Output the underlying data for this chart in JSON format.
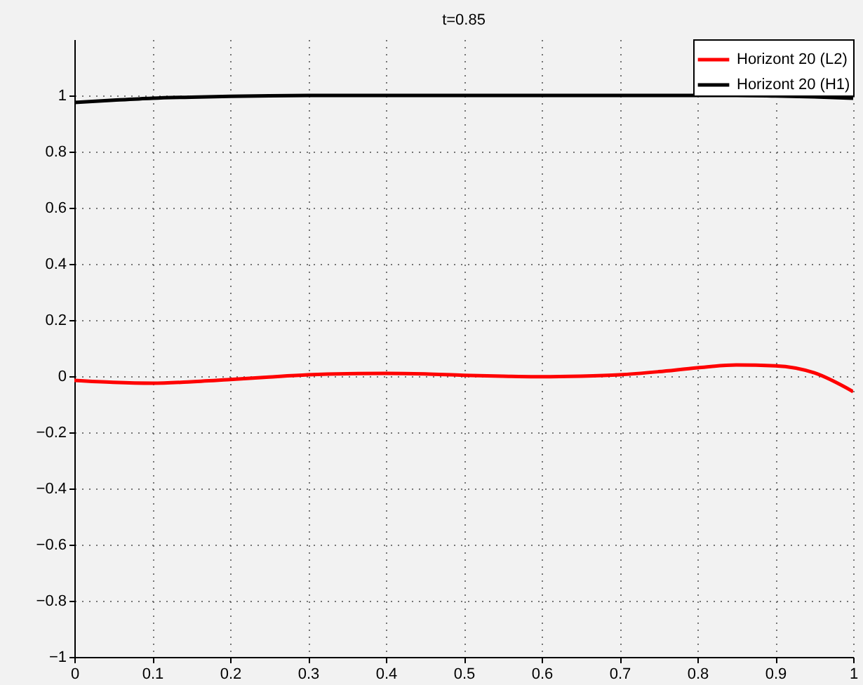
{
  "chart_data": {
    "type": "line",
    "title": "t=0.85",
    "x": [
      0,
      0.05,
      0.1,
      0.15,
      0.2,
      0.25,
      0.3,
      0.35,
      0.4,
      0.45,
      0.5,
      0.55,
      0.6,
      0.65,
      0.7,
      0.75,
      0.8,
      0.85,
      0.9,
      0.95,
      1
    ],
    "series": [
      {
        "name": "Horizont 20 (L2)",
        "color": "#ff0000",
        "values": [
          -0.015,
          -0.022,
          -0.025,
          -0.02,
          -0.012,
          -0.003,
          0.005,
          0.009,
          0.01,
          0.008,
          0.003,
          0,
          -0.002,
          0,
          0.005,
          0.016,
          0.03,
          0.04,
          0.037,
          0.012,
          -0.055
        ]
      },
      {
        "name": "Horizont 20 (H1)",
        "color": "#000000",
        "values": [
          0.975,
          0.983,
          0.99,
          0.994,
          0.997,
          0.999,
          1,
          1,
          1,
          1,
          1,
          1,
          1,
          1,
          1,
          1,
          1,
          1,
          0.998,
          0.995,
          0.99
        ]
      }
    ],
    "xlim": [
      0,
      1
    ],
    "xticks": [
      0,
      0.1,
      0.2,
      0.3,
      0.4,
      0.5,
      0.6,
      0.7,
      0.8,
      0.9,
      1
    ],
    "ylim": [
      -1,
      1.2
    ],
    "yticks": [
      -1,
      -0.8,
      -0.6,
      -0.4,
      -0.2,
      0,
      0.2,
      0.4,
      0.6,
      0.8,
      1
    ],
    "grid": true,
    "legend": "top right",
    "line_style": "solid"
  }
}
